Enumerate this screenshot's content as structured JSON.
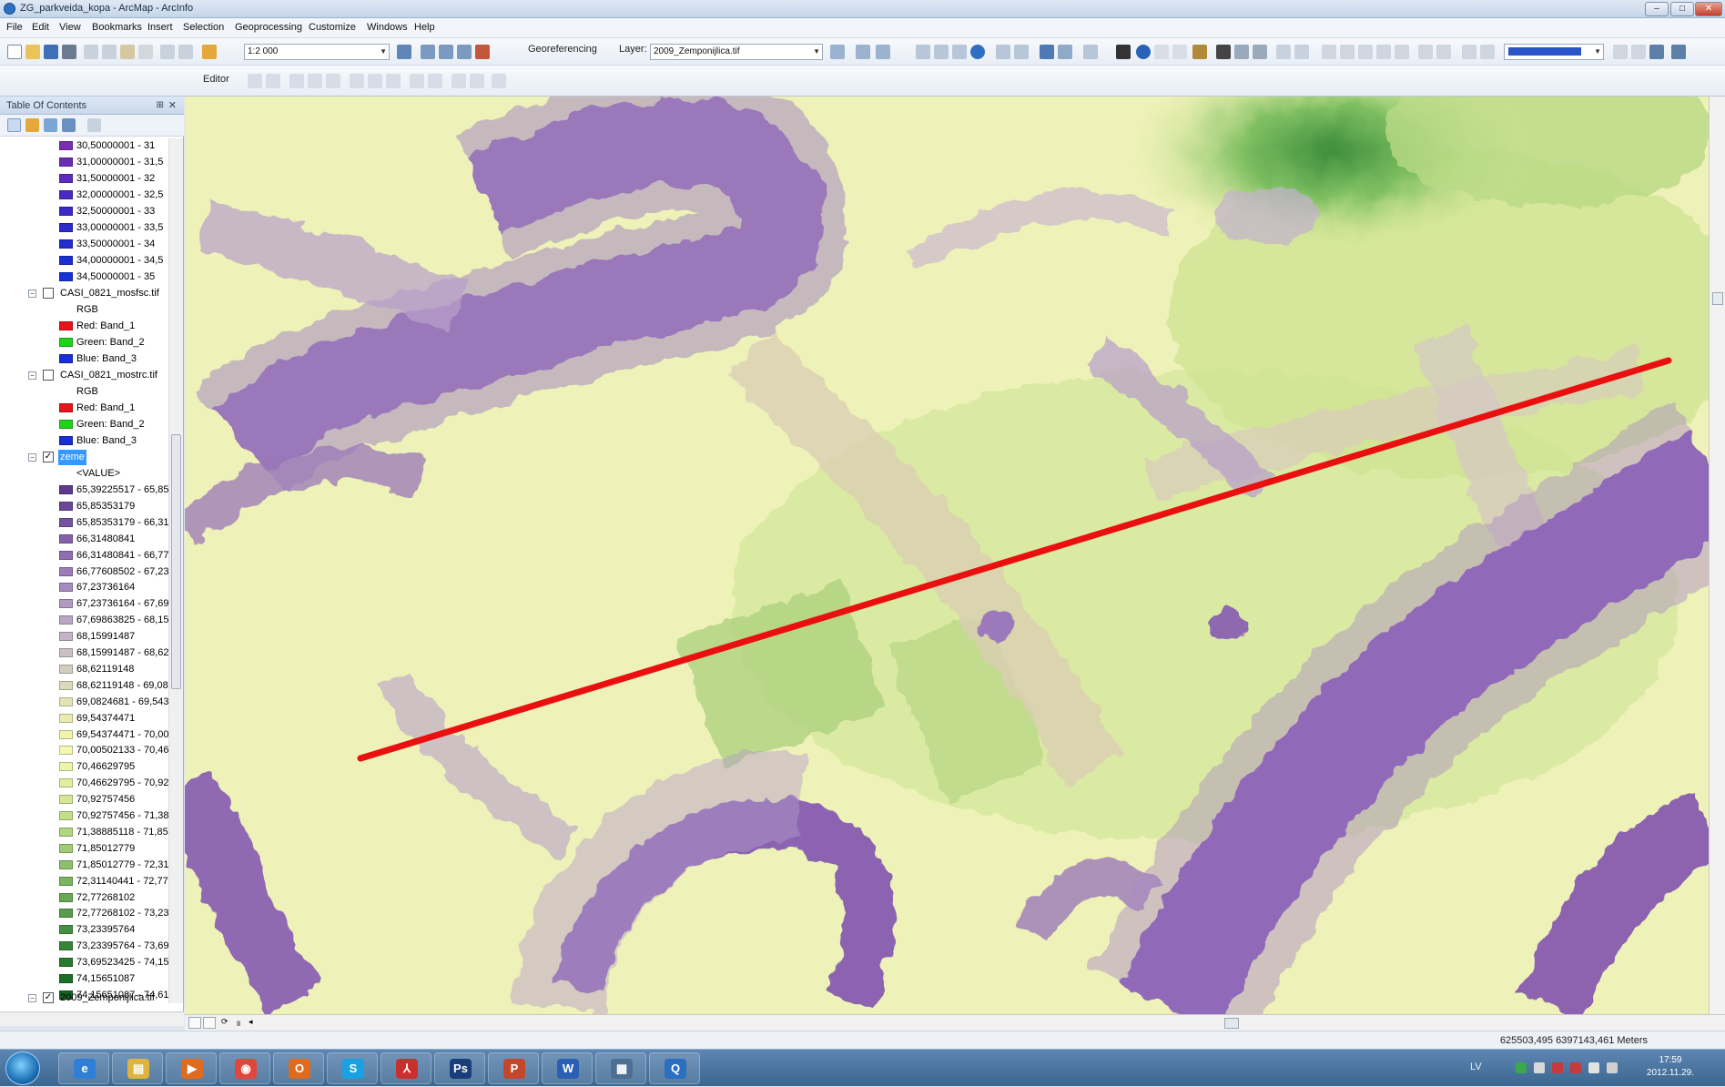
{
  "window": {
    "title": "ZG_parkveida_kopa - ArcMap - ArcInfo",
    "controls": [
      "–",
      "□",
      "✕"
    ]
  },
  "menu": [
    "File",
    "Edit",
    "View",
    "Bookmarks",
    "Insert",
    "Selection",
    "Geoprocessing",
    "Customize",
    "Windows",
    "Help"
  ],
  "toolbar": {
    "scale": "1:2 000",
    "georeferencing_label": "Georeferencing",
    "layer_label": "Layer:",
    "layer_value": "2009_Zemponijlica.tif",
    "editor_label": "Editor"
  },
  "toc": {
    "title": "Table Of Contents",
    "pin": "⊞",
    "close": "✕",
    "legend_top": [
      {
        "label": "30,50000001 - 31",
        "color": "#7b2fb0"
      },
      {
        "label": "31,00000001 - 31,5",
        "color": "#6a2db7"
      },
      {
        "label": "31,50000001 - 32",
        "color": "#5b2cbd"
      },
      {
        "label": "32,00000001 - 32,5",
        "color": "#4a2ac1"
      },
      {
        "label": "32,50000001 - 33",
        "color": "#3b2ac6"
      },
      {
        "label": "33,00000001 - 33,5",
        "color": "#2e2bcb"
      },
      {
        "label": "33,50000001 - 34",
        "color": "#222ccf"
      },
      {
        "label": "34,00000001 - 34,5",
        "color": "#1a2fd3"
      },
      {
        "label": "34,50000001 - 35",
        "color": "#1434d7"
      }
    ],
    "layer_casi1": {
      "name": "CASI_0821_mosfsc.tif",
      "rgb": "RGB",
      "bands": [
        {
          "label": "Red:   Band_1",
          "color": "#e8141b"
        },
        {
          "label": "Green: Band_2",
          "color": "#1fd31a"
        },
        {
          "label": "Blue:  Band_3",
          "color": "#1a2fd3"
        }
      ]
    },
    "layer_casi2": {
      "name": "CASI_0821_mostrc.tif",
      "rgb": "RGB",
      "bands": [
        {
          "label": "Red:   Band_1",
          "color": "#e8141b"
        },
        {
          "label": "Green: Band_2",
          "color": "#1fd31a"
        },
        {
          "label": "Blue:  Band_3",
          "color": "#1a2fd3"
        }
      ]
    },
    "layer_zeme": {
      "name": "zeme",
      "value_header": "<VALUE>",
      "classes": [
        {
          "label": "65,39225517 - 65,85",
          "color": "#5c3a8c"
        },
        {
          "label": "65,85353179",
          "color": "#6a4896"
        },
        {
          "label": "65,85353179 - 66,31",
          "color": "#7754a0"
        },
        {
          "label": "66,31480841",
          "color": "#8461a9"
        },
        {
          "label": "66,31480841 - 66,77",
          "color": "#906fb1"
        },
        {
          "label": "66,77608502 - 67,23",
          "color": "#9b7db8"
        },
        {
          "label": "67,23736164",
          "color": "#a68bbe"
        },
        {
          "label": "67,23736164 - 67,69",
          "color": "#b099c2"
        },
        {
          "label": "67,69863825 - 68,15",
          "color": "#b9a7c4"
        },
        {
          "label": "68,15991487",
          "color": "#c2b4c4"
        },
        {
          "label": "68,15991487 - 68,62",
          "color": "#cbc1c3"
        },
        {
          "label": "68,62119148",
          "color": "#d4cec0"
        },
        {
          "label": "68,62119148 - 69,08",
          "color": "#dcd9bc"
        },
        {
          "label": "69,0824681 - 69,543",
          "color": "#e4e3b6"
        },
        {
          "label": "69,54374471",
          "color": "#ebebb0"
        },
        {
          "label": "69,54374471 - 70,00",
          "color": "#f1f2ae"
        },
        {
          "label": "70,00502133 - 70,46",
          "color": "#f6f7b4"
        },
        {
          "label": "70,46629795",
          "color": "#eef4aa"
        },
        {
          "label": "70,46629795 - 70,92",
          "color": "#e2eea0"
        },
        {
          "label": "70,92757456",
          "color": "#d3e796"
        },
        {
          "label": "70,92757456 - 71,38",
          "color": "#c3df8b"
        },
        {
          "label": "71,38885118 - 71,85",
          "color": "#b1d680"
        },
        {
          "label": "71,85012779",
          "color": "#9fcc75"
        },
        {
          "label": "71,85012779 - 72,31",
          "color": "#8cc16a"
        },
        {
          "label": "72,31140441 - 72,77",
          "color": "#79b65f"
        },
        {
          "label": "72,77268102",
          "color": "#67aa55"
        },
        {
          "label": "72,77268102 - 73,23",
          "color": "#559e4b"
        },
        {
          "label": "73,23395764",
          "color": "#449241"
        },
        {
          "label": "73,23395764 - 73,69",
          "color": "#358638"
        },
        {
          "label": "73,69523425 - 74,15",
          "color": "#287a30"
        },
        {
          "label": "74,15651087",
          "color": "#1d6e28"
        },
        {
          "label": "74,15651087 - 74,61",
          "color": "#146322"
        }
      ]
    },
    "layer_ortho": {
      "name": "2009_Zemponijlica.tif"
    }
  },
  "map": {
    "profile_line_color": "#ea1010"
  },
  "status": {
    "coordinates": "625503,495  6397143,461 Meters"
  },
  "taskbar": {
    "apps": [
      "ie",
      "explorer",
      "media",
      "chrome",
      "office",
      "skype",
      "acrobat",
      "photoshop",
      "powerpoint",
      "word",
      "files",
      "arcmap"
    ],
    "labels": [
      "e",
      "▤",
      "▶",
      "◉",
      "O",
      "S",
      "⅄",
      "Ps",
      "P",
      "W",
      "▦",
      "Q"
    ],
    "lang": "LV",
    "time": "17:59",
    "date": "2012.11.29."
  }
}
